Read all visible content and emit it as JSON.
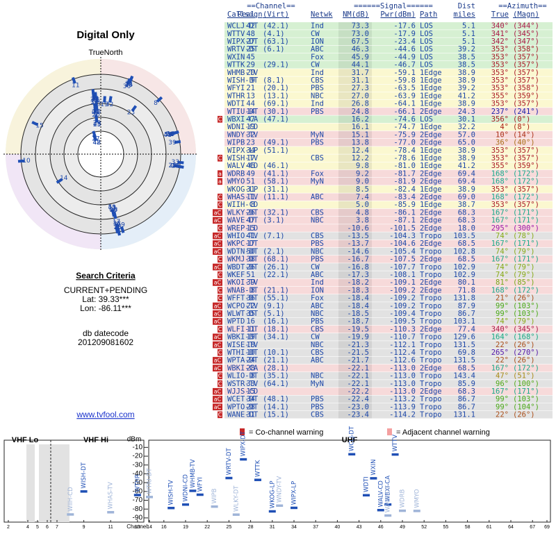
{
  "title": "Digital Only",
  "compass_label": "TrueNorth",
  "criteria": {
    "heading": "Search Criteria",
    "mode": "CURRENT+PENDING",
    "lat": "Lat: 39.33***",
    "lon": "Lon: -86.11***",
    "db_label": "db datecode",
    "db_code": "201209081602"
  },
  "link": "www.tvfool.com",
  "table": {
    "group_headers": [
      "==Channel==",
      "======Signal======",
      "Dist",
      "==Azimuth=="
    ],
    "columns": [
      "Callsign",
      "Real",
      "(Virt)",
      "Netwk",
      "NM(dB)",
      "Pwr(dBm)",
      "Path",
      "miles",
      "True",
      "(Magn)"
    ],
    "rows": [
      [
        null,
        "WCLJ-DT",
        "42",
        "(42.1)",
        "Ind",
        "73.3",
        "-17.6",
        "LOS",
        "5.1",
        "340°",
        "(344°)"
      ],
      [
        null,
        "WTTV",
        "48",
        "(4.1)",
        "CW",
        "73.0",
        "-17.9",
        "LOS",
        "5.1",
        "341°",
        "(345°)"
      ],
      [
        null,
        "WIPX-DT",
        "27",
        "(63.1)",
        "ION",
        "67.5",
        "-23.4",
        "LOS",
        "5.1",
        "342°",
        "(347°)"
      ],
      [
        null,
        "WRTV-DT",
        "25",
        "(6.1)",
        "ABC",
        "46.3",
        "-44.6",
        "LOS",
        "39.2",
        "353°",
        "(358°)"
      ],
      [
        null,
        "WXIN",
        "45",
        null,
        "Fox",
        "45.9",
        "-44.9",
        "LOS",
        "38.5",
        "353°",
        "(357°)"
      ],
      [
        null,
        "WTTK",
        "29",
        "(29.1)",
        "CW",
        "44.1",
        "-46.7",
        "LOS",
        "38.5",
        "353°",
        "(357°)"
      ],
      [
        null,
        "WHMB-TV",
        "20",
        null,
        "Ind",
        "31.7",
        "-59.1",
        "1Edge",
        "38.9",
        "353°",
        "(357°)"
      ],
      [
        null,
        "WISH-DT",
        "9",
        "(8.1)",
        "CBS",
        "31.1",
        "-59.8",
        "1Edge",
        "38.9",
        "353°",
        "(357°)"
      ],
      [
        null,
        "WFYI",
        "21",
        "(20.1)",
        "PBS",
        "27.3",
        "-63.5",
        "1Edge",
        "39.2",
        "353°",
        "(358°)"
      ],
      [
        null,
        "WTHR",
        "13",
        "(13.1)",
        "NBC",
        "27.0",
        "-63.9",
        "1Edge",
        "41.2",
        "355°",
        "(359°)"
      ],
      [
        null,
        "WDTI",
        "44",
        "(69.1)",
        "Ind",
        "26.8",
        "-64.1",
        "1Edge",
        "38.9",
        "353°",
        "(357°)"
      ],
      [
        null,
        "WTIU-DT",
        "14",
        "(30.1)",
        "PBS",
        "24.8",
        "-66.1",
        "2Edge",
        "24.3",
        "237°",
        "(241°)"
      ],
      [
        "C",
        "WBXI-CA",
        "47",
        "(47.1)",
        null,
        "16.2",
        "-74.6",
        "LOS",
        "30.1",
        "356°",
        "(0°)"
      ],
      [
        null,
        "WDNI-CD",
        "19",
        null,
        null,
        "16.1",
        "-74.7",
        "1Edge",
        "32.2",
        "4°",
        "(8°)"
      ],
      [
        null,
        "WNDY-TV",
        "32",
        null,
        "MyN",
        "15.1",
        "-75.9",
        "2Edge",
        "57.0",
        "10°",
        "(14°)"
      ],
      [
        null,
        "WIPB",
        "23",
        "(49.1)",
        "PBS",
        "13.8",
        "-77.0",
        "2Edge",
        "65.0",
        "36°",
        "(40°)"
      ],
      [
        null,
        "WIPX-LP",
        "34",
        "(51.1)",
        null,
        "12.4",
        "-78.4",
        "1Edge",
        "38.9",
        "353°",
        "(357°)"
      ],
      [
        "C",
        "WISH-TV",
        "17",
        null,
        "CBS",
        "12.2",
        "-78.6",
        "1Edge",
        "38.9",
        "353°",
        "(357°)"
      ],
      [
        null,
        "WALV-CD",
        "46",
        "(46.1)",
        null,
        "9.8",
        "-81.0",
        "1Edge",
        "41.2",
        "355°",
        "(359°)"
      ],
      [
        "a",
        "WDRB",
        "49",
        "(41.1)",
        "Fox",
        "9.2",
        "-81.7",
        "2Edge",
        "69.4",
        "168°",
        "(172°)"
      ],
      [
        "a",
        "WMYO",
        "51",
        "(58.1)",
        "MyN",
        "9.0",
        "-81.9",
        "2Edge",
        "69.4",
        "168°",
        "(172°)"
      ],
      [
        null,
        "WKOG-LP",
        "31",
        "(31.1)",
        null,
        "8.5",
        "-82.4",
        "1Edge",
        "38.9",
        "353°",
        "(357°)"
      ],
      [
        "C",
        "WHAS-TV",
        "11",
        "(11.1)",
        "ABC",
        "7.4",
        "-83.4",
        "2Edge",
        "69.0",
        "168°",
        "(172°)"
      ],
      [
        "C",
        "WIIH-CD",
        "8",
        null,
        null,
        "5.0",
        "-85.9",
        "1Edge",
        "38.7",
        "353°",
        "(357°)"
      ],
      [
        "aC",
        "WLKY-DT",
        "26",
        "(32.1)",
        "CBS",
        "4.8",
        "-86.1",
        "2Edge",
        "68.3",
        "167°",
        "(171°)"
      ],
      [
        "aC",
        "WAVE-DT",
        "47",
        "(3.1)",
        "NBC",
        "3.8",
        "-87.1",
        "2Edge",
        "68.3",
        "167°",
        "(171°)"
      ],
      [
        "C",
        "WREP-LD",
        "15",
        null,
        null,
        "-10.6",
        "-101.5",
        "2Edge",
        "18.0",
        "295°",
        "(300°)"
      ],
      [
        "aC",
        "WHIO-TV",
        "41",
        "(7.1)",
        "CBS",
        "-13.5",
        "-104.3",
        "Tropo",
        "103.5",
        "74°",
        "(78°)"
      ],
      [
        "aC",
        "WKPC-DT",
        "17",
        null,
        "PBS",
        "-13.7",
        "-104.6",
        "2Edge",
        "68.5",
        "167°",
        "(171°)"
      ],
      [
        "aC",
        "WDTN-DT",
        "50",
        "(2.1)",
        "NBC",
        "-14.6",
        "-105.4",
        "Tropo",
        "102.8",
        "74°",
        "(79°)"
      ],
      [
        "C",
        "WKMJ-DT",
        "38",
        "(68.1)",
        "PBS",
        "-16.7",
        "-107.5",
        "2Edge",
        "68.5",
        "167°",
        "(171°)"
      ],
      [
        "aC",
        "WBDT-DT",
        "26",
        "(26.1)",
        "CW",
        "-16.8",
        "-107.7",
        "Tropo",
        "102.9",
        "74°",
        "(79°)"
      ],
      [
        "C",
        "WKEF",
        "51",
        "(22.1)",
        "ABC",
        "-17.3",
        "-108.1",
        "Tropo",
        "102.9",
        "74°",
        "(79°)"
      ],
      [
        "aC",
        "WKOI-TV",
        "39",
        null,
        "Ind",
        "-18.2",
        "-109.1",
        "2Edge",
        "80.1",
        "81°",
        "(85°)"
      ],
      [
        "C",
        "WNAB-DT",
        "8",
        "(21.1)",
        "ION",
        "-18.3",
        "-109.2",
        "2Edge",
        "71.8",
        "168°",
        "(172°)"
      ],
      [
        "C",
        "WFFT-DT",
        "36",
        "(55.1)",
        "Fox",
        "-18.4",
        "-109.2",
        "Tropo",
        "131.8",
        "21°",
        "(26°)"
      ],
      [
        "aC",
        "WCPO-TV",
        "22",
        "(9.1)",
        "ABC",
        "-18.4",
        "-109.2",
        "Tropo",
        "87.9",
        "99°",
        "(103°)"
      ],
      [
        "aC",
        "WLWT-DT",
        "35",
        "(5.1)",
        "NBC",
        "-18.5",
        "-109.4",
        "Tropo",
        "86.7",
        "99°",
        "(103°)"
      ],
      [
        "aC",
        "WPTD",
        "16",
        "(16.1)",
        "PBS",
        "-18.7",
        "-109.5",
        "Tropo",
        "103.1",
        "74°",
        "(79°)"
      ],
      [
        "C",
        "WLFI-DT",
        "11",
        "(18.1)",
        "CBS",
        "-19.5",
        "-110.3",
        "2Edge",
        "77.4",
        "340°",
        "(345°)"
      ],
      [
        "aC",
        "WBKI-DT",
        "19",
        "(34.1)",
        "CW",
        "-19.9",
        "-110.7",
        "Tropo",
        "129.6",
        "164°",
        "(168°)"
      ],
      [
        "aC",
        "WISE-TV",
        "18",
        null,
        "NBC",
        "-21.3",
        "-112.1",
        "Tropo",
        "131.5",
        "22°",
        "(26°)"
      ],
      [
        "C",
        "WTHI-DT",
        "10",
        "(10.1)",
        "CBS",
        "-21.5",
        "-112.4",
        "Tropo",
        "69.8",
        "265°",
        "(270°)"
      ],
      [
        "aC",
        "WPTA-DT",
        "24",
        "(21.1)",
        "ABC",
        "-21.7",
        "-112.6",
        "Tropo",
        "131.5",
        "22°",
        "(26°)"
      ],
      [
        "aC",
        "WBKI-CA",
        "28",
        "(28.1)",
        null,
        "-22.1",
        "-113.0",
        "2Edge",
        "68.5",
        "167°",
        "(172°)"
      ],
      [
        "C",
        "WLIO-DT",
        "8",
        "(35.1)",
        "NBC",
        "-22.1",
        "-113.0",
        "Tropo",
        "143.4",
        "47°",
        "(51°)"
      ],
      [
        "C",
        "WSTR-TV",
        "33",
        "(64.1)",
        "MyN",
        "-22.1",
        "-113.0",
        "Tropo",
        "85.9",
        "96°",
        "(100°)"
      ],
      [
        "aC",
        "WJJS-CD",
        "15",
        null,
        null,
        "-22.2",
        "-113.0",
        "2Edge",
        "68.3",
        "167°",
        "(171°)"
      ],
      [
        "aC",
        "WCET-DT",
        "34",
        "(48.1)",
        "PBS",
        "-22.4",
        "-113.2",
        "Tropo",
        "86.7",
        "99°",
        "(103°)"
      ],
      [
        "aC",
        "WPTO-DT",
        "28",
        "(14.1)",
        "PBS",
        "-23.0",
        "-113.9",
        "Tropo",
        "86.7",
        "99°",
        "(104°)"
      ],
      [
        "C",
        "WANE-DT",
        "31",
        "(15.1)",
        "CBS",
        "-23.4",
        "-114.2",
        "Tropo",
        "131.1",
        "22°",
        "(26°)"
      ]
    ]
  },
  "legend": {
    "co_channel": "= Co-channel warning",
    "adjacent": "= Adjacent channel warning"
  },
  "spectrum": {
    "bands": [
      "VHF Lo",
      "VHF Hi",
      "UHF"
    ],
    "y_label": "dBm",
    "x_label": "Channel",
    "ylim": [
      -94,
      -5
    ],
    "yticks": [
      -10,
      -20,
      -30,
      -40,
      -50,
      -60,
      -70,
      -80,
      -90
    ],
    "xticks": [
      2,
      4,
      5,
      6,
      7,
      9,
      11,
      13,
      14,
      16,
      19,
      22,
      25,
      28,
      31,
      34,
      37,
      40,
      43,
      46,
      49,
      52,
      55,
      58,
      61,
      64,
      67,
      69
    ]
  }
}
